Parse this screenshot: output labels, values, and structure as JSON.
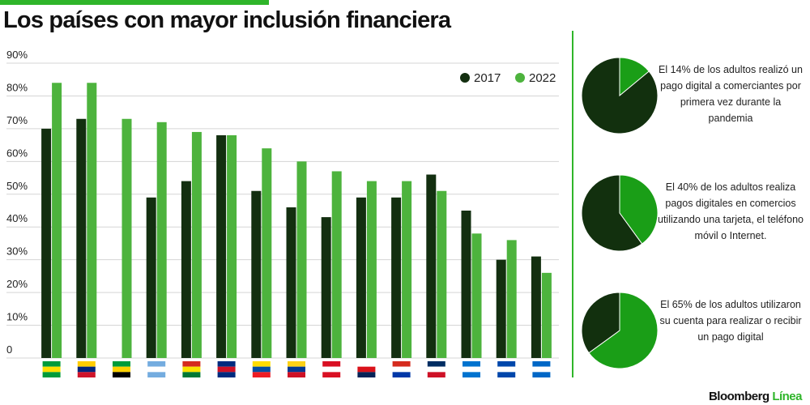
{
  "chart_data": [
    {
      "type": "bar",
      "title": "Los países con mayor inclusión financiera",
      "categories": [
        null,
        null,
        null,
        null,
        null,
        null,
        null,
        null,
        null,
        null,
        null,
        null,
        null,
        null,
        null
      ],
      "series": [
        {
          "name": "2017",
          "color": "#132f10",
          "values": [
            70,
            73,
            null,
            49,
            54,
            68,
            51,
            46,
            43,
            49,
            49,
            56,
            45,
            30,
            31
          ]
        },
        {
          "name": "2022",
          "color": "#4db33d",
          "values": [
            84,
            84,
            73,
            72,
            69,
            68,
            64,
            60,
            57,
            54,
            54,
            51,
            38,
            36,
            26
          ]
        }
      ],
      "ylim": [
        0,
        90
      ],
      "yticks": [
        {
          "value": 0,
          "label": "0"
        },
        {
          "value": 10,
          "label": "10%"
        },
        {
          "value": 20,
          "label": "20%"
        },
        {
          "value": 30,
          "label": "30%"
        },
        {
          "value": 40,
          "label": "40%"
        },
        {
          "value": 50,
          "label": "50%"
        },
        {
          "value": 60,
          "label": "60%"
        },
        {
          "value": 70,
          "label": "70%"
        },
        {
          "value": 80,
          "label": "80%"
        },
        {
          "value": 90,
          "label": "90%"
        }
      ],
      "grid": true,
      "legend": "top-right"
    },
    {
      "type": "pie",
      "values": [
        14,
        86
      ],
      "colors": [
        "#1a9e17",
        "#12300e"
      ],
      "annotation": "El 14% de los adultos realizó un pago digital a comerciantes por primera vez durante la pandemia"
    },
    {
      "type": "pie",
      "values": [
        40,
        60
      ],
      "colors": [
        "#1a9e17",
        "#12300e"
      ],
      "annotation": "El 40% de los adultos realiza pagos digitales en comercios utilizando una tarjeta, el teléfono móvil o Internet."
    },
    {
      "type": "pie",
      "values": [
        65,
        35
      ],
      "colors": [
        "#1a9e17",
        "#12300e"
      ],
      "annotation": "El 65% de los adultos utilizaron su cuenta para realizar o recibir un pago digital"
    }
  ],
  "brand": {
    "name": "Bloomberg",
    "suffix": "Línea"
  }
}
